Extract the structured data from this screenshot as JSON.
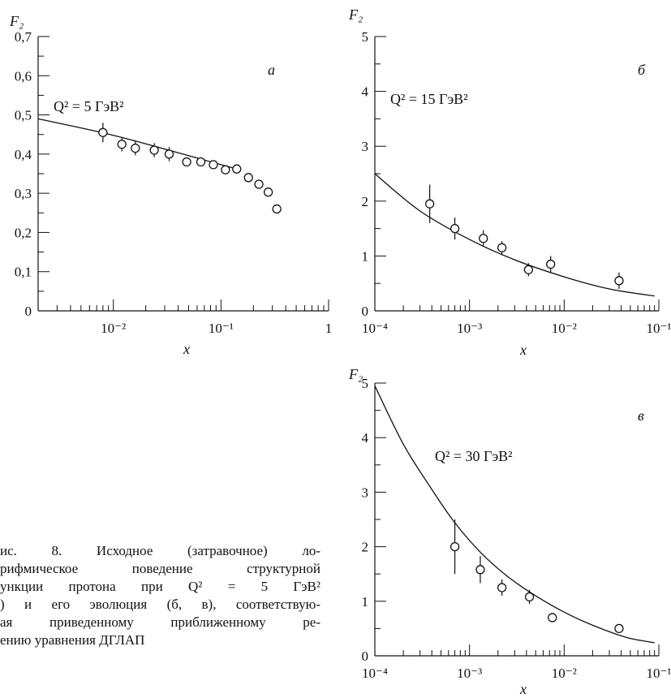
{
  "caption_lines": [
    "ис. 8. Исходное (затравочное) ло-",
    "рифмическое поведение структурной",
    "ункции протона при Q² = 5 ГэВ²",
    ") и его эволюция (б, в), соответствую-",
    "ая приведенному приближенному ре-",
    "ению уравнения ДГЛАП"
  ],
  "chart_data": [
    {
      "type": "scatter",
      "panel_letter": "а",
      "ylabel": "F₂",
      "xlabel": "x",
      "annotation": "Q² = 5 ГэВ²",
      "x_scale": "log",
      "xlim": [
        0.002,
        1
      ],
      "ylim": [
        0,
        0.7
      ],
      "x_ticks": [
        0.01,
        0.1,
        1
      ],
      "x_tick_labels": [
        "10⁻²",
        "10⁻¹",
        "1"
      ],
      "y_ticks": [
        0,
        0.1,
        0.2,
        0.3,
        0.4,
        0.5,
        0.6,
        0.7
      ],
      "y_tick_labels": [
        "0",
        "0,1",
        "0,2",
        "0,3",
        "0,4",
        "0,5",
        "0,6",
        "0,7"
      ],
      "points": [
        {
          "x": 0.008,
          "y": 0.455,
          "err": 0.025
        },
        {
          "x": 0.012,
          "y": 0.425,
          "err": 0.018
        },
        {
          "x": 0.016,
          "y": 0.415,
          "err": 0.018
        },
        {
          "x": 0.024,
          "y": 0.41,
          "err": 0.018
        },
        {
          "x": 0.033,
          "y": 0.4,
          "err": 0.018
        },
        {
          "x": 0.048,
          "y": 0.38,
          "err": 0
        },
        {
          "x": 0.065,
          "y": 0.38,
          "err": 0
        },
        {
          "x": 0.085,
          "y": 0.373,
          "err": 0
        },
        {
          "x": 0.11,
          "y": 0.36,
          "err": 0
        },
        {
          "x": 0.14,
          "y": 0.362,
          "err": 0
        },
        {
          "x": 0.18,
          "y": 0.34,
          "err": 0
        },
        {
          "x": 0.225,
          "y": 0.323,
          "err": 0
        },
        {
          "x": 0.275,
          "y": 0.303,
          "err": 0
        },
        {
          "x": 0.33,
          "y": 0.26,
          "err": 0
        }
      ],
      "curve": {
        "x": [
          0.002,
          0.01,
          0.05,
          0.1,
          0.15
        ],
        "y": [
          0.49,
          0.448,
          0.396,
          0.373,
          0.36
        ]
      }
    },
    {
      "type": "scatter",
      "panel_letter": "б",
      "ylabel": "F₂",
      "xlabel": "x",
      "annotation": "Q² = 15 ГэВ²",
      "x_scale": "log",
      "xlim": [
        0.0001,
        0.1
      ],
      "ylim": [
        0,
        5
      ],
      "x_ticks": [
        0.0001,
        0.001,
        0.01,
        0.1
      ],
      "x_tick_labels": [
        "10⁻⁴",
        "10⁻³",
        "10⁻²",
        "10⁻¹"
      ],
      "y_ticks": [
        0,
        1,
        2,
        3,
        4,
        5
      ],
      "y_tick_labels": [
        "0",
        "1",
        "2",
        "3",
        "4",
        "5"
      ],
      "points": [
        {
          "x": 0.00038,
          "y": 1.95,
          "err": 0.35
        },
        {
          "x": 0.0007,
          "y": 1.5,
          "err": 0.2
        },
        {
          "x": 0.0014,
          "y": 1.32,
          "err": 0.15
        },
        {
          "x": 0.0022,
          "y": 1.15,
          "err": 0.12
        },
        {
          "x": 0.0042,
          "y": 0.75,
          "err": 0.12
        },
        {
          "x": 0.0072,
          "y": 0.85,
          "err": 0.15
        },
        {
          "x": 0.038,
          "y": 0.55,
          "err": 0.15
        }
      ],
      "curve": {
        "x": [
          0.0001,
          0.0003,
          0.001,
          0.003,
          0.01,
          0.03,
          0.09
        ],
        "y": [
          2.5,
          1.82,
          1.3,
          0.93,
          0.62,
          0.4,
          0.27
        ]
      }
    },
    {
      "type": "scatter",
      "panel_letter": "в",
      "ylabel": "F₂",
      "xlabel": "x",
      "annotation": "Q² = 30 ГэВ²",
      "x_scale": "log",
      "xlim": [
        0.0001,
        0.1
      ],
      "ylim": [
        0,
        5
      ],
      "x_ticks": [
        0.0001,
        0.001,
        0.01,
        0.1
      ],
      "x_tick_labels": [
        "10⁻⁴",
        "10⁻³",
        "10⁻²",
        "10⁻¹"
      ],
      "y_ticks": [
        0,
        1,
        2,
        3,
        4,
        5
      ],
      "y_tick_labels": [
        "0",
        "1",
        "2",
        "3",
        "4",
        "5"
      ],
      "points": [
        {
          "x": 0.0007,
          "y": 2.0,
          "err": 0.5
        },
        {
          "x": 0.0013,
          "y": 1.58,
          "err": 0.25
        },
        {
          "x": 0.0022,
          "y": 1.25,
          "err": 0.15
        },
        {
          "x": 0.0043,
          "y": 1.08,
          "err": 0.13
        },
        {
          "x": 0.0075,
          "y": 0.7,
          "err": 0
        },
        {
          "x": 0.038,
          "y": 0.5,
          "err": 0.07
        }
      ],
      "curve": {
        "x": [
          0.0001,
          0.0002,
          0.0004,
          0.0007,
          0.0013,
          0.0025,
          0.005,
          0.01,
          0.02,
          0.045,
          0.09
        ],
        "y": [
          4.95,
          3.88,
          3.05,
          2.44,
          1.9,
          1.46,
          1.1,
          0.8,
          0.56,
          0.34,
          0.24
        ]
      }
    }
  ]
}
